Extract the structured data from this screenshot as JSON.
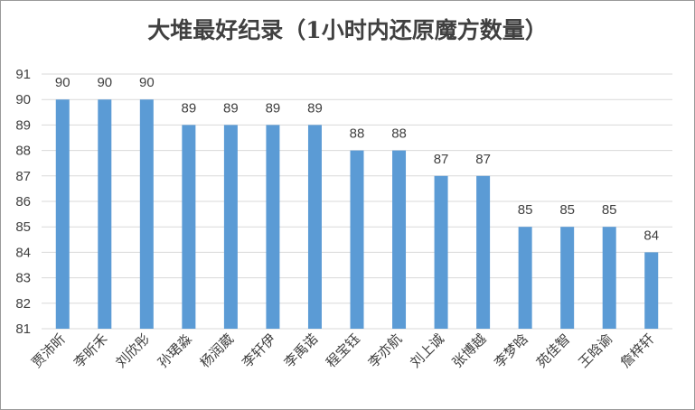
{
  "chart_data": {
    "type": "bar",
    "title": "大堆最好纪录（1小时内还原魔方数量）",
    "categories": [
      "贾沛昕",
      "李昕禾",
      "刘欣彤",
      "孙珺淼",
      "杨润葳",
      "李轩伊",
      "李禹诺",
      "程宝钰",
      "李亦航",
      "刘上诚",
      "张博越",
      "李梦晗",
      "苑佳智",
      "王晗谕",
      "詹梓轩"
    ],
    "values": [
      90,
      90,
      90,
      89,
      89,
      89,
      89,
      88,
      88,
      87,
      87,
      85,
      85,
      85,
      84
    ],
    "ylim": [
      81,
      91
    ],
    "yticks": [
      81,
      82,
      83,
      84,
      85,
      86,
      87,
      88,
      89,
      90,
      91
    ],
    "grid": true,
    "bar_color": "#5b9bd5",
    "grid_color": "#d9d9d9",
    "text_color": "#404040"
  }
}
